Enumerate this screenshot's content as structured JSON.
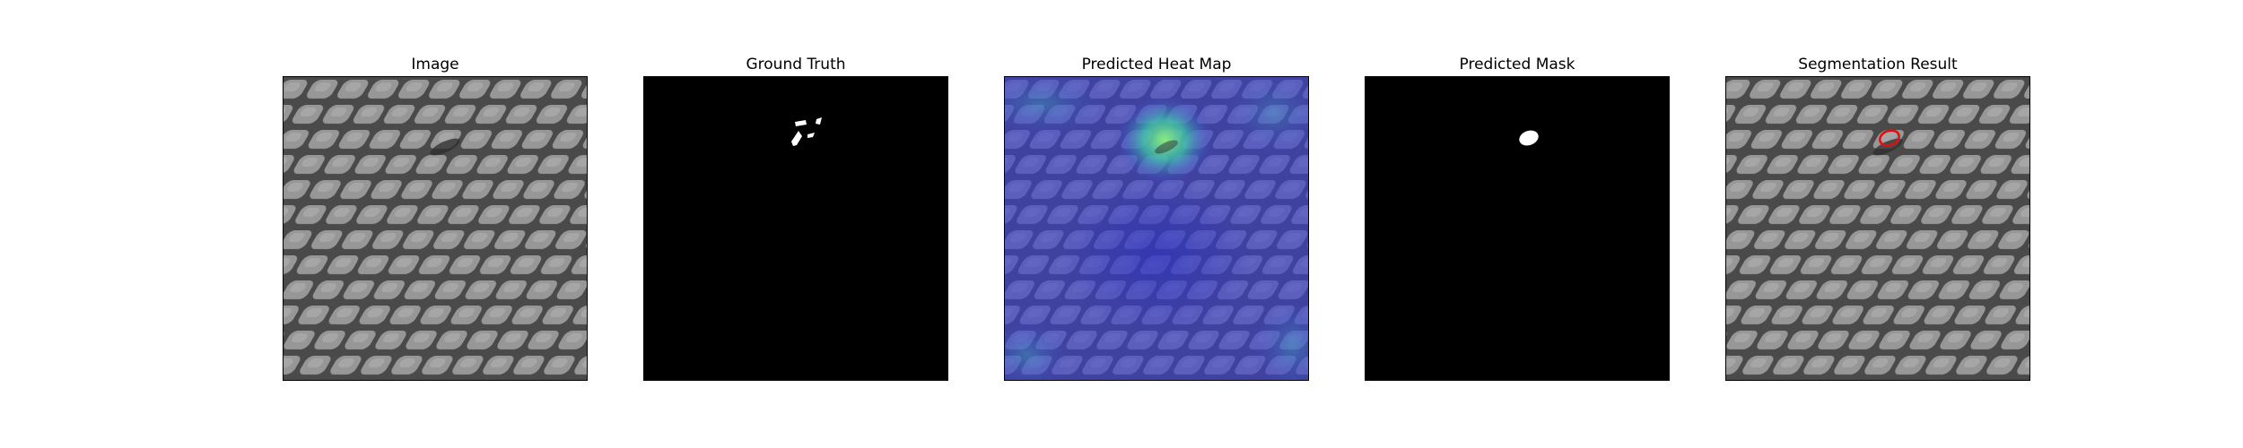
{
  "figure": {
    "panels": [
      {
        "title": "Image"
      },
      {
        "title": "Ground Truth"
      },
      {
        "title": "Predicted Heat Map"
      },
      {
        "title": "Predicted Mask"
      },
      {
        "title": "Segmentation Result"
      }
    ]
  },
  "colors": {
    "background": "#ffffff",
    "fabric_base": "#7c7c7c",
    "fabric_cell": "#9a9a9a",
    "fabric_line": "#3c3c3c",
    "mask_bg": "#000000",
    "mask_fg": "#ffffff",
    "heat_low": "#3d3fd6",
    "heat_high": "#5fe08a",
    "contour": "#e01010"
  }
}
